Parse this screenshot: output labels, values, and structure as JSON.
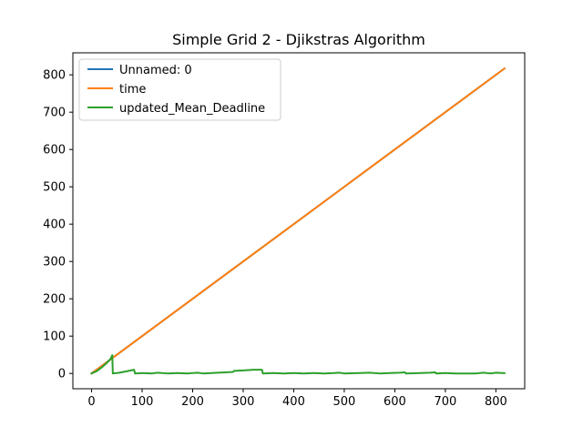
{
  "chart_data": {
    "type": "line",
    "title": "Simple Grid 2 - Djikstras Algorithm",
    "xlabel": "",
    "ylabel": "",
    "xlim": [
      -37,
      857
    ],
    "ylim": [
      -41,
      859
    ],
    "xticks": [
      0,
      100,
      200,
      300,
      400,
      500,
      600,
      700,
      800
    ],
    "yticks": [
      0,
      100,
      200,
      300,
      400,
      500,
      600,
      700,
      800
    ],
    "grid": false,
    "legend": "top-left",
    "series": [
      {
        "name": "Unnamed: 0",
        "color": "#1f77b4",
        "points": [
          [
            0,
            0
          ],
          [
            817,
            817
          ]
        ]
      },
      {
        "name": "time",
        "color": "#ff7f0e",
        "points": [
          [
            0,
            0
          ],
          [
            817,
            817
          ]
        ]
      },
      {
        "name": "updated_Mean_Deadline",
        "color": "#2ca02c",
        "points": [
          [
            0,
            0
          ],
          [
            10,
            6
          ],
          [
            20,
            16
          ],
          [
            30,
            28
          ],
          [
            38,
            40
          ],
          [
            41,
            49
          ],
          [
            42,
            0
          ],
          [
            55,
            2
          ],
          [
            70,
            6
          ],
          [
            84,
            10
          ],
          [
            86,
            0
          ],
          [
            100,
            1
          ],
          [
            120,
            0
          ],
          [
            130,
            2
          ],
          [
            150,
            0
          ],
          [
            170,
            1
          ],
          [
            190,
            0
          ],
          [
            210,
            2
          ],
          [
            220,
            0
          ],
          [
            250,
            2
          ],
          [
            280,
            4
          ],
          [
            282,
            7
          ],
          [
            300,
            8
          ],
          [
            320,
            10
          ],
          [
            337,
            10
          ],
          [
            339,
            0
          ],
          [
            360,
            1
          ],
          [
            380,
            0
          ],
          [
            400,
            1
          ],
          [
            420,
            0
          ],
          [
            440,
            1
          ],
          [
            460,
            0
          ],
          [
            480,
            1
          ],
          [
            490,
            2
          ],
          [
            500,
            0
          ],
          [
            530,
            1
          ],
          [
            550,
            2
          ],
          [
            570,
            0
          ],
          [
            590,
            1
          ],
          [
            610,
            2
          ],
          [
            620,
            3
          ],
          [
            622,
            0
          ],
          [
            650,
            1
          ],
          [
            670,
            2
          ],
          [
            680,
            3
          ],
          [
            682,
            0
          ],
          [
            700,
            1
          ],
          [
            720,
            0
          ],
          [
            760,
            0
          ],
          [
            775,
            2
          ],
          [
            790,
            0
          ],
          [
            800,
            2
          ],
          [
            817,
            1
          ]
        ]
      }
    ]
  }
}
